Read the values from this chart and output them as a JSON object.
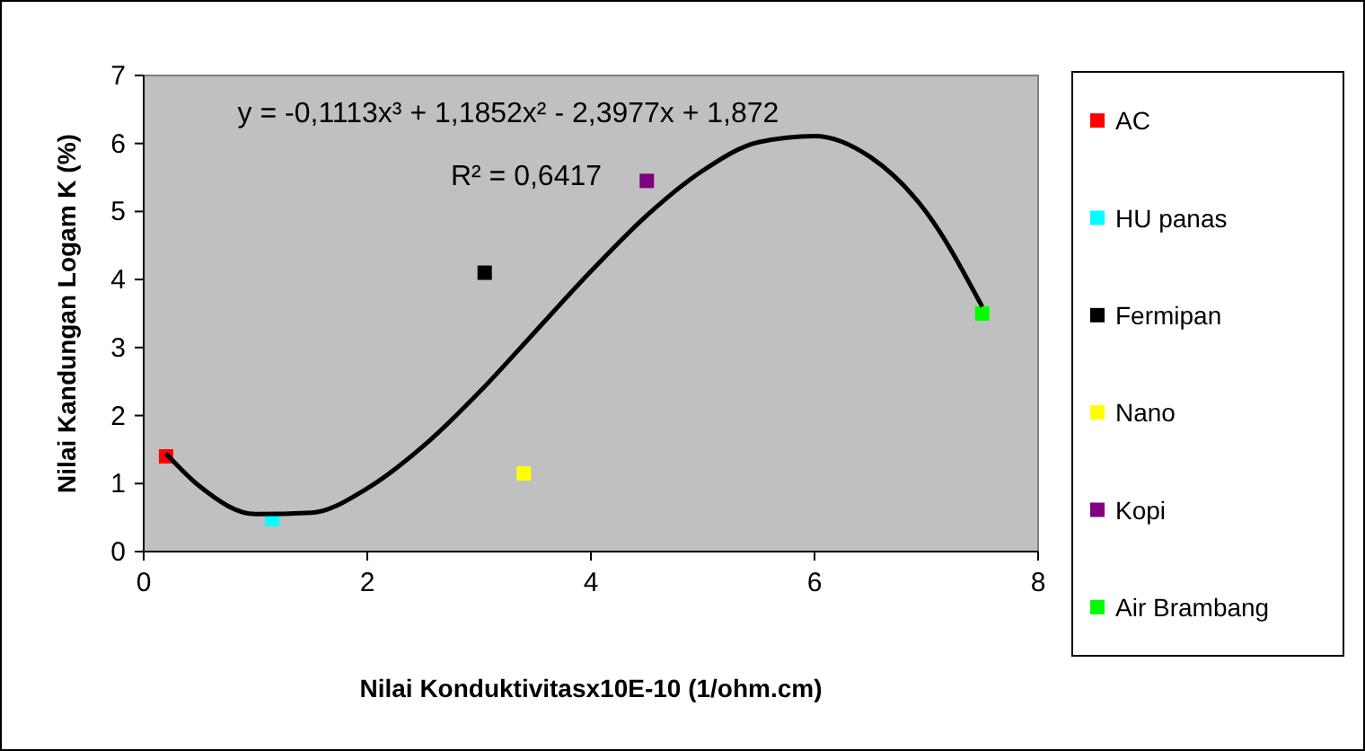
{
  "chart_data": {
    "type": "scatter",
    "xlabel": "Nilai Konduktivitasx10E-10 (1/ohm.cm)",
    "ylabel": "Nilai Kandungan Logam K (%)",
    "xlim": [
      0,
      8
    ],
    "xticks": [
      0,
      2,
      4,
      6,
      8
    ],
    "ylim": [
      0,
      7
    ],
    "yticks": [
      0,
      1,
      2,
      3,
      4,
      5,
      6,
      7
    ],
    "grid": false,
    "legend": "right",
    "marker": "square",
    "annotations": [
      "y = -0,1113x³ + 1,1852x² - 2,3977x + 1,872",
      "R² = 0,6417"
    ],
    "series": [
      {
        "name": "AC",
        "color": "#ff0000",
        "x": [
          0.2
        ],
        "values": [
          1.4
        ]
      },
      {
        "name": "HU panas",
        "color": "#00ffff",
        "x": [
          1.15
        ],
        "values": [
          0.48
        ]
      },
      {
        "name": "Fermipan",
        "color": "#000000",
        "x": [
          3.05
        ],
        "values": [
          4.1
        ]
      },
      {
        "name": "Nano",
        "color": "#ffff00",
        "x": [
          3.4
        ],
        "values": [
          1.15
        ]
      },
      {
        "name": "Kopi",
        "color": "#800080",
        "x": [
          4.5
        ],
        "values": [
          5.45
        ]
      },
      {
        "name": "Air Brambang",
        "color": "#00ff00",
        "x": [
          7.5
        ],
        "values": [
          3.5
        ]
      },
      {
        "type": "line",
        "marker": "none",
        "color": "#000000",
        "x": [
          0.2,
          0.5,
          1,
          1.5,
          2,
          2.5,
          3,
          3.5,
          4,
          4.5,
          5,
          5.5,
          6,
          6.5,
          7,
          7.5
        ],
        "values": [
          1.44,
          0.96,
          0.55,
          0.57,
          0.93,
          1.55,
          2.34,
          3.23,
          4.12,
          4.94,
          5.6,
          6.02,
          6.11,
          5.8,
          4.99,
          3.6
        ]
      }
    ]
  }
}
